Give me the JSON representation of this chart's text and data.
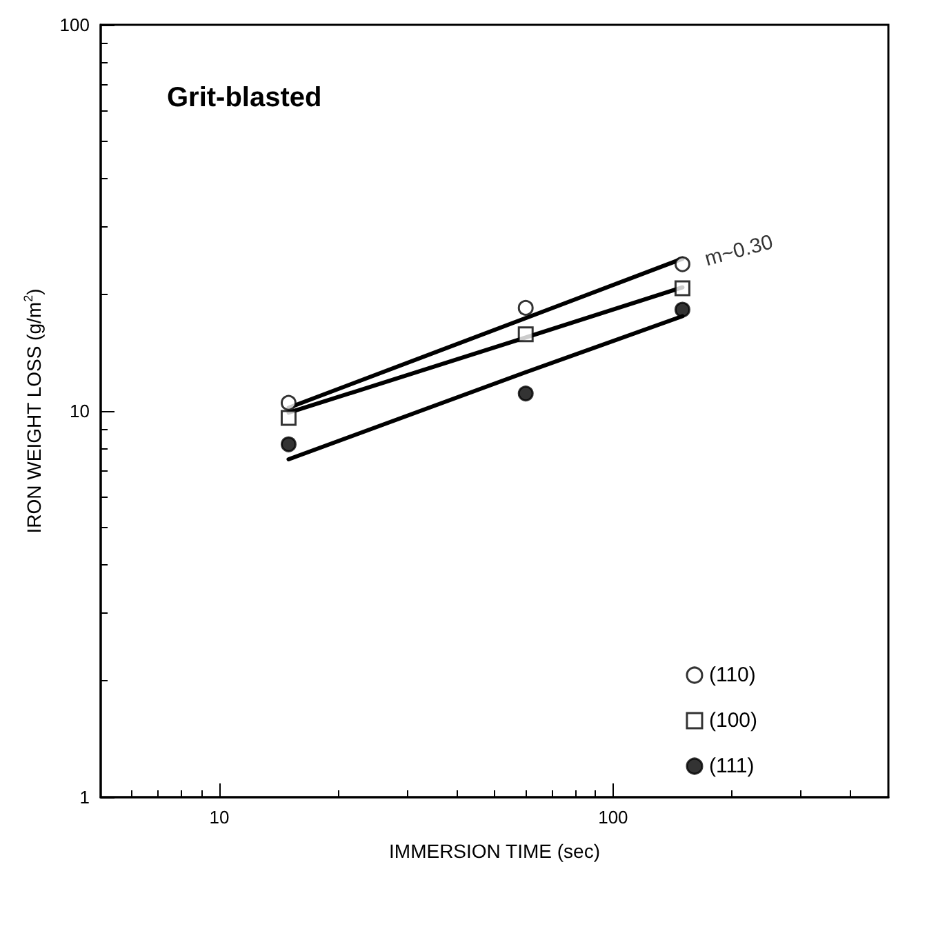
{
  "chart_data": {
    "type": "scatter",
    "title": "Grit-blasted",
    "xlabel": "IMMERSION TIME (sec)",
    "ylabel": "IRON WEIGHT LOSS (g/m$^{2}$)",
    "x": [
      15,
      60,
      150
    ],
    "series": [
      {
        "name": "(110)",
        "color": "#ffffff",
        "marker": "circle",
        "values": [
          10.5,
          18.5,
          24
        ]
      },
      {
        "name": "(100)",
        "color": "#ffffff",
        "marker": "square",
        "values": [
          9.6,
          15.8,
          20.8
        ]
      },
      {
        "name": "(111)",
        "color": "#000000",
        "marker": "circle",
        "values": [
          8.2,
          11.1,
          18.3
        ]
      },
      {
        "type": "line",
        "color": "#000000",
        "values": [
          10.2,
          17.4,
          24.8
        ]
      },
      {
        "type": "line",
        "color": "#000000",
        "values": [
          9.9,
          15.5,
          20.9
        ]
      },
      {
        "type": "line",
        "color": "#000000",
        "values": [
          7.5,
          12.6,
          17.6
        ]
      }
    ],
    "annotations": [
      {
        "text": "m~0.30",
        "x": 150,
        "y": 24
      }
    ],
    "log": "xy",
    "xlim": [
      5,
      500
    ],
    "ylim": [
      1,
      100
    ],
    "xticks": [
      10,
      100
    ],
    "yticks": [
      1,
      10,
      100
    ],
    "grid": false,
    "legend": "bottom right",
    "line_style": "solid"
  }
}
